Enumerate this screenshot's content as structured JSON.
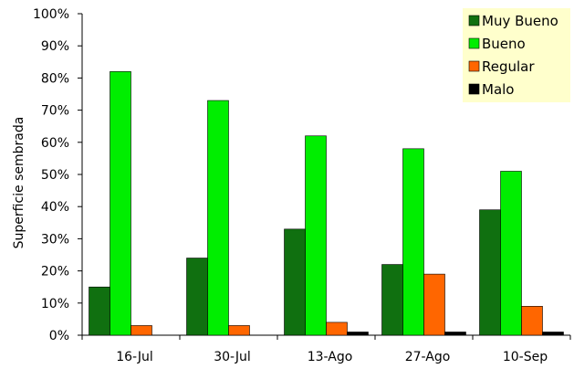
{
  "chart_data": {
    "type": "bar",
    "categories": [
      "16-Jul",
      "30-Jul",
      "13-Ago",
      "27-Ago",
      "10-Sep"
    ],
    "series": [
      {
        "name": "Muy Bueno",
        "color": "#107010",
        "values": [
          15,
          24,
          33,
          22,
          39
        ]
      },
      {
        "name": "Bueno",
        "color": "#00ee00",
        "values": [
          82,
          73,
          62,
          58,
          51
        ]
      },
      {
        "name": "Regular",
        "color": "#ff6600",
        "values": [
          3,
          3,
          4,
          19,
          9
        ]
      },
      {
        "name": "Malo",
        "color": "#000000",
        "values": [
          0,
          0,
          1,
          1,
          1
        ]
      }
    ],
    "ylabel": "Superficie sembrada",
    "xlabel": "",
    "ylim": [
      0,
      100
    ],
    "yticks": [
      "0%",
      "10%",
      "20%",
      "30%",
      "40%",
      "50%",
      "60%",
      "70%",
      "80%",
      "90%",
      "100%"
    ],
    "grid": false,
    "legend_position": "top-right",
    "legend_background": "#ffffcc"
  }
}
